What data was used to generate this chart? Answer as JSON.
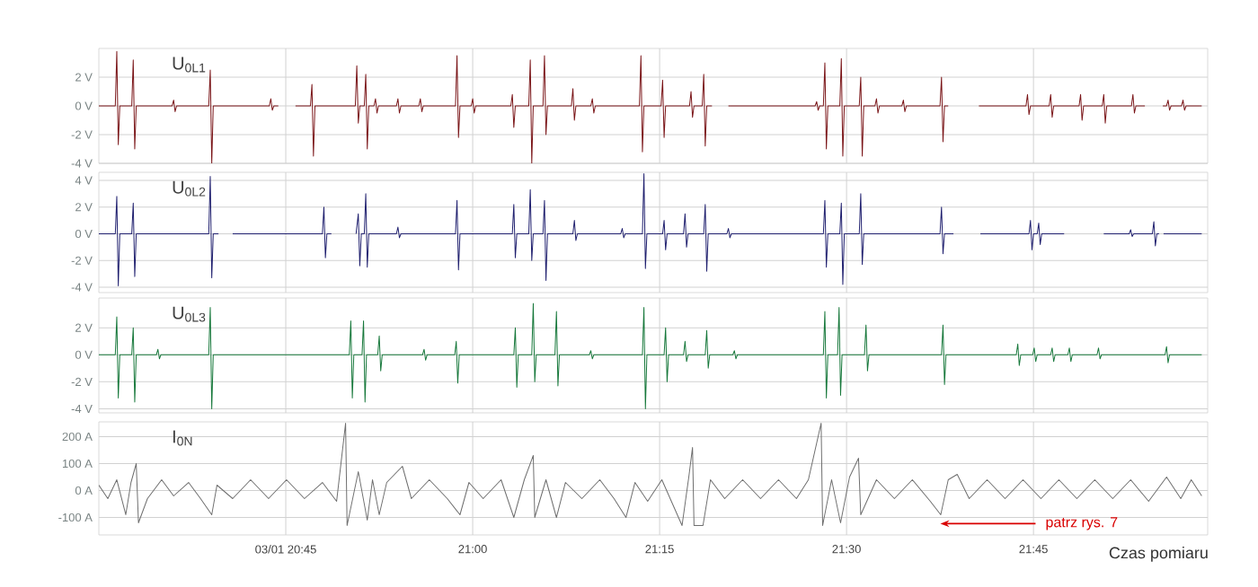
{
  "chart_data": [
    {
      "type": "line",
      "grid": true,
      "tick_labels": "y",
      "xlim": [
        20.5,
        21.983
      ],
      "xticks": [
        {
          "value": 20.75,
          "label": null
        },
        {
          "value": 21.0,
          "label": null
        },
        {
          "value": 21.25,
          "label": null
        },
        {
          "value": 21.5,
          "label": null
        },
        {
          "value": 21.75,
          "label": null
        }
      ],
      "ylim": [
        -4,
        4
      ],
      "yticks": [
        {
          "value": -4,
          "label": "-4 V"
        },
        {
          "value": -2,
          "label": "-2 V"
        },
        {
          "value": 0,
          "label": "0 V"
        },
        {
          "value": 2,
          "label": "2 V"
        }
      ],
      "series": [
        {
          "name": "U$_{0L1}$",
          "color": "#7a1518",
          "x": [
            20.5,
            20.522,
            20.524,
            20.526,
            20.528,
            20.544,
            20.546,
            20.548,
            20.55,
            20.598,
            20.6,
            20.602,
            20.604,
            20.647,
            20.649,
            20.651,
            20.653,
            20.728,
            20.73,
            20.732,
            20.734,
            20.74,
            20.75,
            20.763,
            20.783,
            20.785,
            20.787,
            20.789,
            20.843,
            20.845,
            20.847,
            20.849,
            20.855,
            20.857,
            20.859,
            20.861,
            20.868,
            20.87,
            20.872,
            20.874,
            20.898,
            20.9,
            20.902,
            20.904,
            20.928,
            20.93,
            20.932,
            20.934,
            20.977,
            20.979,
            20.981,
            20.983,
            20.998,
            21.0,
            21.002,
            21.004,
            21.051,
            21.053,
            21.055,
            21.057,
            21.075,
            21.077,
            21.079,
            21.081,
            21.094,
            21.096,
            21.098,
            21.1,
            21.132,
            21.134,
            21.136,
            21.138,
            21.158,
            21.16,
            21.162,
            21.164,
            21.223,
            21.225,
            21.227,
            21.229,
            21.252,
            21.254,
            21.256,
            21.258,
            21.29,
            21.292,
            21.294,
            21.296,
            21.307,
            21.309,
            21.311,
            21.313,
            21.32,
            21.33,
            21.342,
            21.458,
            21.46,
            21.462,
            21.464,
            21.469,
            21.471,
            21.473,
            21.475,
            21.491,
            21.493,
            21.495,
            21.497,
            21.517,
            21.519,
            21.521,
            21.523,
            21.538,
            21.54,
            21.542,
            21.544,
            21.574,
            21.576,
            21.578,
            21.58,
            21.625,
            21.627,
            21.629,
            21.631,
            21.636,
            21.65,
            21.677,
            21.74,
            21.742,
            21.744,
            21.746,
            21.771,
            21.773,
            21.775,
            21.777,
            21.811,
            21.813,
            21.815,
            21.817,
            21.842,
            21.844,
            21.846,
            21.848,
            21.881,
            21.883,
            21.885,
            21.887,
            21.899,
            21.91,
            21.923,
            21.928,
            21.93,
            21.932,
            21.934,
            21.948,
            21.95,
            21.952,
            21.954,
            21.975
          ],
          "values": [
            0,
            0,
            3.8,
            -2.7,
            0,
            0,
            3.2,
            -3,
            0,
            0,
            0.4,
            -0.4,
            0,
            0,
            2.5,
            -4,
            0,
            0,
            0.5,
            -0.3,
            0,
            0,
            null,
            0,
            0,
            1.5,
            -3.5,
            0,
            0,
            2.8,
            -1.2,
            0,
            0,
            2.2,
            -3,
            0,
            0,
            0.5,
            -0.5,
            0,
            0,
            0.5,
            -0.5,
            0,
            0,
            0.5,
            -0.4,
            0,
            0,
            3.5,
            -2.2,
            0,
            0,
            0.5,
            -0.5,
            0,
            0,
            0.8,
            -1.5,
            0,
            0,
            3.2,
            -4,
            0,
            0,
            3.5,
            -2,
            0,
            0,
            1.2,
            -1,
            0,
            0,
            0.5,
            -0.5,
            0,
            0,
            3.5,
            -3.2,
            0,
            0,
            1.8,
            -2.2,
            0,
            0,
            1,
            -0.8,
            0,
            0,
            2.2,
            -2.8,
            0,
            0,
            null,
            0,
            0,
            0.3,
            -0.3,
            0,
            0,
            3,
            -3,
            0,
            0,
            3.3,
            -3.5,
            0,
            0,
            2,
            -3.5,
            0,
            0,
            0.5,
            -0.5,
            0,
            0,
            0.4,
            -0.4,
            0,
            0,
            2,
            -2.5,
            0,
            0,
            null,
            0,
            0,
            0.8,
            -0.6,
            0,
            0,
            0.8,
            -0.8,
            0,
            0,
            0.8,
            -1,
            0,
            0,
            0.8,
            -1.2,
            0,
            0,
            0.8,
            -0.5,
            0,
            0,
            null,
            0,
            0,
            0.4,
            -0.3,
            0,
            0,
            0.4,
            -0.3,
            0,
            0
          ]
        }
      ]
    },
    {
      "type": "line",
      "grid": true,
      "tick_labels": "y",
      "xlim": [
        20.5,
        21.983
      ],
      "xticks": [
        {
          "value": 20.75,
          "label": null
        },
        {
          "value": 21.0,
          "label": null
        },
        {
          "value": 21.25,
          "label": null
        },
        {
          "value": 21.5,
          "label": null
        },
        {
          "value": 21.75,
          "label": null
        }
      ],
      "ylim": [
        -4.4,
        4.6
      ],
      "yticks": [
        {
          "value": -4,
          "label": "-4 V"
        },
        {
          "value": -2,
          "label": "-2 V"
        },
        {
          "value": 0,
          "label": "0 V"
        },
        {
          "value": 2,
          "label": "2 V"
        },
        {
          "value": 4,
          "label": "4 V"
        }
      ],
      "series": [
        {
          "name": "U$_{0L2}$",
          "color": "#1f1f6e",
          "x": [
            20.5,
            20.522,
            20.524,
            20.526,
            20.528,
            20.544,
            20.546,
            20.548,
            20.55,
            20.647,
            20.649,
            20.651,
            20.653,
            20.66,
            20.67,
            20.679,
            20.799,
            20.801,
            20.803,
            20.805,
            20.811,
            20.825,
            20.844,
            20.847,
            20.849,
            20.851,
            20.855,
            20.857,
            20.859,
            20.861,
            20.898,
            20.9,
            20.902,
            20.904,
            20.977,
            20.979,
            20.981,
            20.983,
            21.053,
            21.055,
            21.057,
            21.059,
            21.075,
            21.077,
            21.079,
            21.081,
            21.094,
            21.096,
            21.098,
            21.1,
            21.134,
            21.136,
            21.138,
            21.14,
            21.198,
            21.2,
            21.202,
            21.204,
            21.227,
            21.229,
            21.231,
            21.233,
            21.254,
            21.256,
            21.258,
            21.26,
            21.282,
            21.284,
            21.286,
            21.288,
            21.309,
            21.311,
            21.313,
            21.315,
            21.34,
            21.342,
            21.344,
            21.346,
            21.469,
            21.471,
            21.473,
            21.475,
            21.491,
            21.493,
            21.495,
            21.497,
            21.517,
            21.519,
            21.521,
            21.523,
            21.625,
            21.627,
            21.629,
            21.631,
            21.643,
            21.66,
            21.679,
            21.744,
            21.746,
            21.748,
            21.75,
            21.755,
            21.757,
            21.759,
            21.761,
            21.791,
            21.82,
            21.844,
            21.878,
            21.88,
            21.882,
            21.884,
            21.909,
            21.911,
            21.913,
            21.915,
            21.918,
            21.921,
            21.924,
            21.975
          ],
          "values": [
            0,
            0,
            2.8,
            -3.9,
            0,
            0,
            2.3,
            -3.2,
            0,
            0,
            4.3,
            -3.3,
            0,
            0,
            null,
            0,
            0,
            2,
            -1.8,
            0,
            0,
            null,
            0,
            1.5,
            -2.4,
            0,
            0,
            3,
            -2.5,
            0,
            0,
            0.5,
            -0.3,
            0,
            0,
            2.5,
            -2.7,
            0,
            0,
            2.2,
            -1.8,
            0,
            0,
            3.3,
            -2,
            0,
            0,
            2.5,
            -3.5,
            0,
            0,
            1,
            -0.5,
            0,
            0,
            0.4,
            -0.3,
            0,
            0,
            4.5,
            -2.6,
            0,
            0,
            1,
            -1.2,
            0,
            0,
            1.5,
            -1,
            0,
            0,
            2.2,
            -2.8,
            0,
            0,
            0.4,
            -0.3,
            0,
            0,
            2.5,
            -2.5,
            0,
            0,
            2.3,
            -3.8,
            0,
            0,
            3,
            -2.3,
            0,
            0,
            2,
            -1.5,
            0,
            0,
            null,
            0,
            0,
            1,
            -1.2,
            0,
            0,
            0.8,
            -0.8,
            0,
            0,
            null,
            0,
            0,
            0.3,
            -0.2,
            0,
            0,
            0.9,
            -0.9,
            0,
            0,
            null,
            0,
            0
          ]
        }
      ]
    },
    {
      "type": "line",
      "grid": true,
      "tick_labels": "y",
      "xlim": [
        20.5,
        21.983
      ],
      "xticks": [
        {
          "value": 20.75,
          "label": null
        },
        {
          "value": 21.0,
          "label": null
        },
        {
          "value": 21.25,
          "label": null
        },
        {
          "value": 21.5,
          "label": null
        },
        {
          "value": 21.75,
          "label": null
        }
      ],
      "ylim": [
        -4.3,
        4.2
      ],
      "yticks": [
        {
          "value": -4,
          "label": "-4 V"
        },
        {
          "value": -2,
          "label": "-2 V"
        },
        {
          "value": 0,
          "label": "0 V"
        },
        {
          "value": 2,
          "label": "2 V"
        }
      ],
      "series": [
        {
          "name": "U$_{0L3}$",
          "color": "#17783b",
          "x": [
            20.5,
            20.522,
            20.524,
            20.526,
            20.528,
            20.544,
            20.546,
            20.548,
            20.55,
            20.577,
            20.579,
            20.581,
            20.583,
            20.647,
            20.649,
            20.651,
            20.653,
            20.835,
            20.837,
            20.839,
            20.841,
            20.852,
            20.854,
            20.856,
            20.858,
            20.873,
            20.875,
            20.877,
            20.879,
            20.933,
            20.935,
            20.937,
            20.939,
            20.976,
            20.978,
            20.98,
            20.982,
            21.055,
            21.057,
            21.059,
            21.061,
            21.079,
            21.081,
            21.083,
            21.085,
            21.11,
            21.112,
            21.114,
            21.116,
            21.156,
            21.158,
            21.16,
            21.162,
            21.227,
            21.229,
            21.231,
            21.233,
            21.256,
            21.258,
            21.26,
            21.262,
            21.282,
            21.284,
            21.286,
            21.288,
            21.311,
            21.313,
            21.315,
            21.317,
            21.348,
            21.35,
            21.352,
            21.354,
            21.469,
            21.471,
            21.473,
            21.475,
            21.488,
            21.49,
            21.492,
            21.494,
            21.524,
            21.526,
            21.528,
            21.53,
            21.627,
            21.629,
            21.631,
            21.633,
            21.727,
            21.729,
            21.731,
            21.733,
            21.749,
            21.751,
            21.753,
            21.755,
            21.773,
            21.775,
            21.777,
            21.779,
            21.796,
            21.798,
            21.8,
            21.802,
            21.835,
            21.837,
            21.839,
            21.841,
            21.926,
            21.928,
            21.93,
            21.932,
            21.975
          ],
          "values": [
            0,
            0,
            2.8,
            -3.2,
            0,
            0,
            2,
            -3.5,
            0,
            0,
            0.4,
            -0.3,
            0,
            0,
            3.5,
            -4,
            0,
            0,
            2.5,
            -3.2,
            0,
            0,
            2.5,
            -3.5,
            0,
            0,
            1.4,
            -1.2,
            0,
            0,
            0.4,
            -0.4,
            0,
            0,
            1,
            -2.1,
            0,
            0,
            2,
            -2.4,
            0,
            0,
            3.8,
            -2,
            0,
            0,
            3.2,
            -2.3,
            0,
            0,
            0.3,
            -0.3,
            0,
            0,
            3.5,
            -4,
            0,
            0,
            2,
            -2,
            0,
            0,
            1,
            -0.5,
            0,
            0,
            1.8,
            -1,
            0,
            0,
            0.3,
            -0.3,
            0,
            0,
            3.2,
            -3.2,
            0,
            0,
            3.5,
            -3,
            0,
            0,
            2.2,
            -1.2,
            0,
            0,
            2.2,
            -2.2,
            0,
            0,
            0.8,
            -0.8,
            0,
            0,
            0.5,
            -0.5,
            0,
            0,
            0.5,
            -0.5,
            0,
            0,
            0.5,
            -0.5,
            0,
            0,
            0.5,
            -0.3,
            0,
            0,
            0.6,
            -0.6,
            0,
            0
          ]
        }
      ]
    },
    {
      "type": "line",
      "grid": true,
      "xlabel": "Czas pomiaru",
      "xlim": [
        20.5,
        21.983
      ],
      "xticks": [
        {
          "value": 20.75,
          "label": "03/01 20:45"
        },
        {
          "value": 21.0,
          "label": "21:00"
        },
        {
          "value": 21.25,
          "label": "21:15"
        },
        {
          "value": 21.5,
          "label": "21:30"
        },
        {
          "value": 21.75,
          "label": "21:45"
        }
      ],
      "ylim": [
        -165,
        255
      ],
      "yticks": [
        {
          "value": -100,
          "label": "-100 A"
        },
        {
          "value": 0,
          "label": "0 A"
        },
        {
          "value": 100,
          "label": "100 A"
        },
        {
          "value": 200,
          "label": "200 A"
        }
      ],
      "annotations": [
        "patrz rys. 7"
      ],
      "series": [
        {
          "name": "I$_{0N}$",
          "color": "#6e6e6e",
          "x": [
            20.5,
            20.512,
            20.524,
            20.536,
            20.543,
            20.55,
            20.553,
            20.565,
            20.584,
            20.6,
            20.62,
            20.636,
            20.651,
            20.658,
            20.679,
            20.703,
            20.727,
            20.751,
            20.775,
            20.799,
            20.818,
            20.83,
            20.832,
            20.847,
            20.859,
            20.866,
            20.875,
            20.885,
            20.906,
            20.918,
            20.942,
            20.966,
            20.983,
            20.995,
            21.014,
            21.038,
            21.055,
            21.069,
            21.081,
            21.083,
            21.098,
            21.112,
            21.124,
            21.146,
            21.17,
            21.189,
            21.205,
            21.217,
            21.234,
            21.253,
            21.28,
            21.289,
            21.294,
            21.296,
            21.308,
            21.318,
            21.337,
            21.361,
            21.385,
            21.409,
            21.433,
            21.449,
            21.466,
            21.468,
            21.48,
            21.492,
            21.504,
            21.516,
            21.519,
            21.54,
            21.564,
            21.588,
            21.612,
            21.626,
            21.636,
            21.648,
            21.664,
            21.688,
            21.712,
            21.736,
            21.76,
            21.784,
            21.808,
            21.832,
            21.856,
            21.88,
            21.904,
            21.928,
            21.947,
            21.961,
            21.975
          ],
          "values": [
            20,
            -30,
            40,
            -90,
            30,
            100,
            -120,
            -30,
            40,
            -20,
            30,
            -30,
            -90,
            20,
            -30,
            40,
            -30,
            40,
            -30,
            30,
            -40,
            250,
            -130,
            70,
            -110,
            40,
            -90,
            30,
            90,
            -30,
            40,
            -30,
            -90,
            30,
            -30,
            40,
            -100,
            40,
            130,
            -100,
            40,
            -100,
            30,
            -30,
            40,
            -30,
            -100,
            30,
            -40,
            40,
            -130,
            50,
            160,
            -130,
            -130,
            40,
            -30,
            40,
            -30,
            40,
            -30,
            40,
            250,
            -130,
            40,
            -120,
            50,
            120,
            -90,
            40,
            -30,
            40,
            -40,
            -90,
            40,
            60,
            -30,
            40,
            -30,
            40,
            -30,
            40,
            -30,
            40,
            -30,
            40,
            -40,
            50,
            -30,
            40,
            -20
          ]
        }
      ]
    }
  ]
}
